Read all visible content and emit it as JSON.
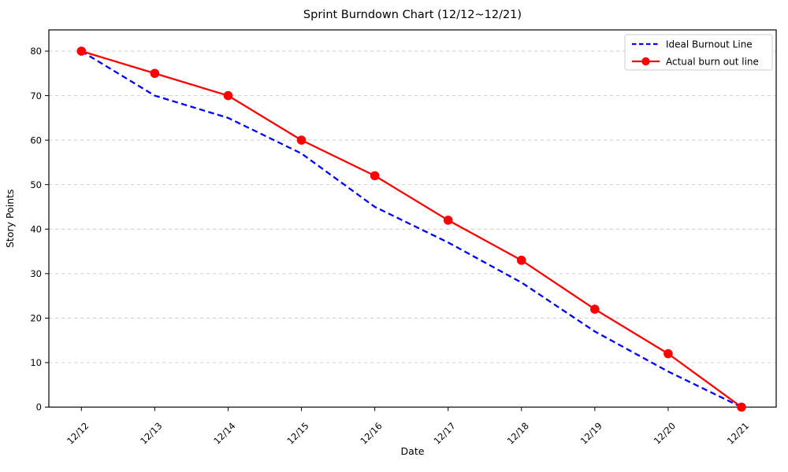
{
  "chart_data": {
    "type": "line",
    "title": "Sprint Burndown Chart (12/12~12/21)",
    "xlabel": "Date",
    "ylabel": "Story Points",
    "categories": [
      "12/12",
      "12/13",
      "12/14",
      "12/15",
      "12/16",
      "12/17",
      "12/18",
      "12/19",
      "12/20",
      "12/21"
    ],
    "series": [
      {
        "name": "Ideal Burnout Line",
        "values": [
          80,
          70,
          65,
          57,
          45,
          37,
          28,
          17,
          8,
          0
        ],
        "color": "#0000ff",
        "line_style": "dashed",
        "marker": "none"
      },
      {
        "name": "Actual burn out line",
        "values": [
          80,
          75,
          70,
          60,
          52,
          42,
          33,
          22,
          12,
          0
        ],
        "color": "#ff0000",
        "line_style": "solid",
        "marker": "circle"
      }
    ],
    "ylim": [
      0,
      80
    ],
    "yticks": [
      0,
      10,
      20,
      30,
      40,
      50,
      60,
      70,
      80
    ],
    "grid": "horizontal-dashed",
    "legend_position": "top-right",
    "colors": {
      "grid": "#cccccc",
      "axis": "#000000",
      "text": "#000000",
      "legend_border": "#cccccc",
      "background": "#ffffff"
    }
  }
}
